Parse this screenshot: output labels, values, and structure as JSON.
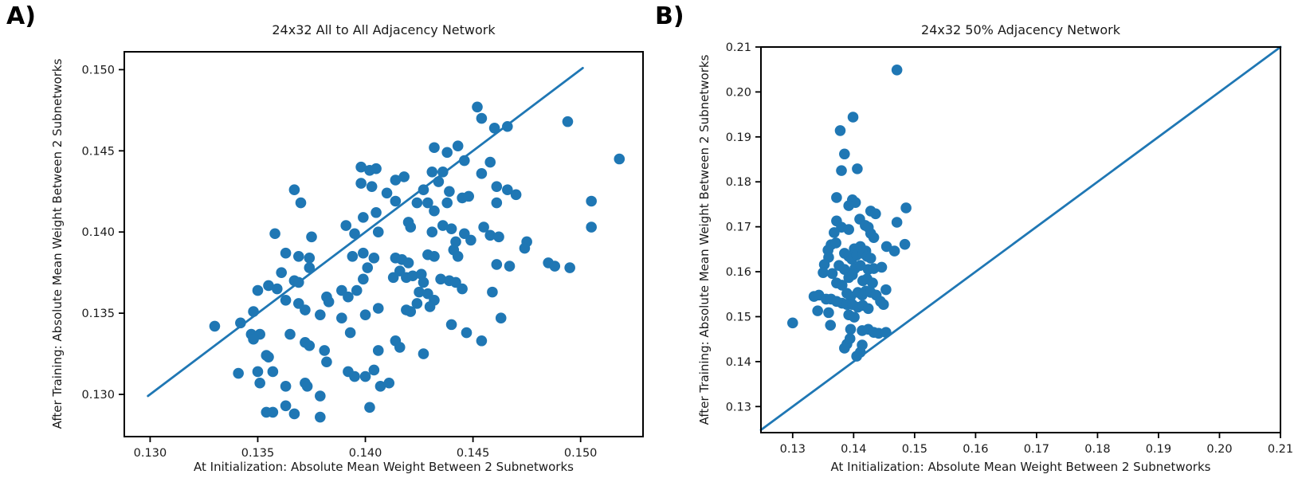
{
  "page": {
    "background": "#ffffff",
    "text_color": "#1a1a1a",
    "axis_color": "#000000"
  },
  "chart_data": [
    {
      "type": "scatter",
      "panel_label": "A)",
      "title": "24x32 All to All Adjacency Network",
      "xlabel": "At Initialization: Absolute Mean Weight Between 2 Subnetworks",
      "ylabel": "After Training: Absolute Mean Weight Between 2 Subnetworks",
      "xlim": [
        0.1288,
        0.1529
      ],
      "ylim": [
        0.1274,
        0.1511
      ],
      "xticks": [
        0.13,
        0.135,
        0.14,
        0.145,
        0.15
      ],
      "xtick_labels": [
        "0.130",
        "0.135",
        "0.140",
        "0.145",
        "0.150"
      ],
      "yticks": [
        0.13,
        0.135,
        0.14,
        0.145,
        0.15
      ],
      "ytick_labels": [
        "0.130",
        "0.135",
        "0.140",
        "0.145",
        "0.150"
      ],
      "grid": false,
      "legend": null,
      "marker_color": "#1f77b4",
      "line_color": "#1f77b4",
      "identity_line": {
        "x1": 0.1299,
        "y1": 0.1299,
        "x2": 0.1501,
        "y2": 0.1501
      },
      "points": [
        [
          0.1367,
          0.1426
        ],
        [
          0.137,
          0.1418
        ],
        [
          0.1358,
          0.1399
        ],
        [
          0.1375,
          0.1397
        ],
        [
          0.1398,
          0.144
        ],
        [
          0.1402,
          0.1438
        ],
        [
          0.1405,
          0.1439
        ],
        [
          0.1398,
          0.143
        ],
        [
          0.1403,
          0.1428
        ],
        [
          0.1391,
          0.1404
        ],
        [
          0.1395,
          0.1399
        ],
        [
          0.1399,
          0.1409
        ],
        [
          0.1405,
          0.1412
        ],
        [
          0.1406,
          0.14
        ],
        [
          0.1452,
          0.1477
        ],
        [
          0.1454,
          0.147
        ],
        [
          0.146,
          0.1464
        ],
        [
          0.1466,
          0.1465
        ],
        [
          0.1494,
          0.1468
        ],
        [
          0.1432,
          0.1452
        ],
        [
          0.1438,
          0.1449
        ],
        [
          0.1443,
          0.1453
        ],
        [
          0.1446,
          0.1444
        ],
        [
          0.1458,
          0.1443
        ],
        [
          0.1454,
          0.1436
        ],
        [
          0.1431,
          0.1437
        ],
        [
          0.1436,
          0.1437
        ],
        [
          0.1518,
          0.1445
        ],
        [
          0.1414,
          0.1432
        ],
        [
          0.1418,
          0.1434
        ],
        [
          0.1434,
          0.1431
        ],
        [
          0.1427,
          0.1426
        ],
        [
          0.1439,
          0.1425
        ],
        [
          0.141,
          0.1424
        ],
        [
          0.1414,
          0.1419
        ],
        [
          0.1424,
          0.1418
        ],
        [
          0.1429,
          0.1418
        ],
        [
          0.1432,
          0.1413
        ],
        [
          0.1438,
          0.1418
        ],
        [
          0.1445,
          0.1421
        ],
        [
          0.1448,
          0.1422
        ],
        [
          0.1461,
          0.1428
        ],
        [
          0.1466,
          0.1426
        ],
        [
          0.147,
          0.1423
        ],
        [
          0.1461,
          0.1418
        ],
        [
          0.1505,
          0.1419
        ],
        [
          0.1505,
          0.1403
        ],
        [
          0.142,
          0.1406
        ],
        [
          0.1421,
          0.1403
        ],
        [
          0.1431,
          0.14
        ],
        [
          0.1436,
          0.1404
        ],
        [
          0.144,
          0.1402
        ],
        [
          0.1446,
          0.1399
        ],
        [
          0.1455,
          0.1403
        ],
        [
          0.1458,
          0.1398
        ],
        [
          0.1462,
          0.1397
        ],
        [
          0.1475,
          0.1394
        ],
        [
          0.1449,
          0.1395
        ],
        [
          0.1442,
          0.1394
        ],
        [
          0.1363,
          0.1387
        ],
        [
          0.1369,
          0.1385
        ],
        [
          0.1374,
          0.1384
        ],
        [
          0.1361,
          0.1375
        ],
        [
          0.1367,
          0.137
        ],
        [
          0.1369,
          0.1369
        ],
        [
          0.1374,
          0.1378
        ],
        [
          0.135,
          0.1364
        ],
        [
          0.1355,
          0.1367
        ],
        [
          0.1359,
          0.1365
        ],
        [
          0.1363,
          0.1358
        ],
        [
          0.1369,
          0.1356
        ],
        [
          0.1372,
          0.1352
        ],
        [
          0.1379,
          0.1349
        ],
        [
          0.1382,
          0.136
        ],
        [
          0.1383,
          0.1357
        ],
        [
          0.1389,
          0.1364
        ],
        [
          0.1392,
          0.136
        ],
        [
          0.1396,
          0.1364
        ],
        [
          0.1399,
          0.1371
        ],
        [
          0.1401,
          0.1378
        ],
        [
          0.1404,
          0.1384
        ],
        [
          0.1394,
          0.1385
        ],
        [
          0.1399,
          0.1387
        ],
        [
          0.133,
          0.1342
        ],
        [
          0.1342,
          0.1344
        ],
        [
          0.1348,
          0.1351
        ],
        [
          0.1347,
          0.1337
        ],
        [
          0.1351,
          0.1337
        ],
        [
          0.1348,
          0.1334
        ],
        [
          0.1354,
          0.1324
        ],
        [
          0.1355,
          0.1323
        ],
        [
          0.1365,
          0.1337
        ],
        [
          0.1372,
          0.1332
        ],
        [
          0.1374,
          0.133
        ],
        [
          0.1381,
          0.1327
        ],
        [
          0.1382,
          0.132
        ],
        [
          0.1389,
          0.1347
        ],
        [
          0.1393,
          0.1338
        ],
        [
          0.14,
          0.1349
        ],
        [
          0.1406,
          0.1353
        ],
        [
          0.1392,
          0.1314
        ],
        [
          0.1395,
          0.1311
        ],
        [
          0.14,
          0.1311
        ],
        [
          0.1404,
          0.1315
        ],
        [
          0.1406,
          0.1327
        ],
        [
          0.1341,
          0.1313
        ],
        [
          0.135,
          0.1314
        ],
        [
          0.1351,
          0.1307
        ],
        [
          0.1357,
          0.1314
        ],
        [
          0.1363,
          0.1305
        ],
        [
          0.1372,
          0.1307
        ],
        [
          0.1373,
          0.1305
        ],
        [
          0.1379,
          0.1299
        ],
        [
          0.1354,
          0.1289
        ],
        [
          0.1357,
          0.1289
        ],
        [
          0.1363,
          0.1293
        ],
        [
          0.1367,
          0.1288
        ],
        [
          0.1379,
          0.1286
        ],
        [
          0.1402,
          0.1292
        ],
        [
          0.1407,
          0.1305
        ],
        [
          0.1414,
          0.1384
        ],
        [
          0.1417,
          0.1383
        ],
        [
          0.142,
          0.1381
        ],
        [
          0.1416,
          0.1376
        ],
        [
          0.1413,
          0.1372
        ],
        [
          0.1419,
          0.1372
        ],
        [
          0.1422,
          0.1373
        ],
        [
          0.1426,
          0.1374
        ],
        [
          0.1429,
          0.1386
        ],
        [
          0.1432,
          0.1385
        ],
        [
          0.1441,
          0.1389
        ],
        [
          0.1443,
          0.1385
        ],
        [
          0.1461,
          0.138
        ],
        [
          0.1467,
          0.1379
        ],
        [
          0.1485,
          0.1381
        ],
        [
          0.1488,
          0.1379
        ],
        [
          0.1495,
          0.1378
        ],
        [
          0.1474,
          0.139
        ],
        [
          0.1427,
          0.1369
        ],
        [
          0.1435,
          0.1371
        ],
        [
          0.1439,
          0.137
        ],
        [
          0.1442,
          0.1369
        ],
        [
          0.1445,
          0.1365
        ],
        [
          0.1425,
          0.1363
        ],
        [
          0.1429,
          0.1362
        ],
        [
          0.1432,
          0.1358
        ],
        [
          0.143,
          0.1354
        ],
        [
          0.1424,
          0.1356
        ],
        [
          0.1459,
          0.1363
        ],
        [
          0.1419,
          0.1352
        ],
        [
          0.1421,
          0.1351
        ],
        [
          0.144,
          0.1343
        ],
        [
          0.1447,
          0.1338
        ],
        [
          0.1454,
          0.1333
        ],
        [
          0.1463,
          0.1347
        ],
        [
          0.1414,
          0.1333
        ],
        [
          0.1416,
          0.1329
        ],
        [
          0.1427,
          0.1325
        ],
        [
          0.1411,
          0.1307
        ]
      ]
    },
    {
      "type": "scatter",
      "panel_label": "B)",
      "title": "24x32 50% Adjacency Network",
      "xlabel": "At Initialization: Absolute Mean Weight Between 2 Subnetworks",
      "ylabel": "After Training: Absolute Mean Weight Between 2 Subnetworks",
      "xlim": [
        0.1248,
        0.21
      ],
      "ylim": [
        0.1242,
        0.21
      ],
      "xticks": [
        0.13,
        0.14,
        0.15,
        0.16,
        0.17,
        0.18,
        0.19,
        0.2,
        0.21
      ],
      "xtick_labels": [
        "0.13",
        "0.14",
        "0.15",
        "0.16",
        "0.17",
        "0.18",
        "0.19",
        "0.20",
        "0.21"
      ],
      "yticks": [
        0.13,
        0.14,
        0.15,
        0.16,
        0.17,
        0.18,
        0.19,
        0.2,
        0.21
      ],
      "ytick_labels": [
        "0.13",
        "0.14",
        "0.15",
        "0.16",
        "0.17",
        "0.18",
        "0.19",
        "0.20",
        "0.21"
      ],
      "grid": false,
      "legend": null,
      "marker_color": "#1f77b4",
      "line_color": "#1f77b4",
      "identity_line": {
        "x1": 0.1248,
        "y1": 0.1248,
        "x2": 0.21,
        "y2": 0.21
      },
      "points": [
        [
          0.1471,
          0.2049
        ],
        [
          0.1399,
          0.1944
        ],
        [
          0.1378,
          0.1914
        ],
        [
          0.1385,
          0.1862
        ],
        [
          0.138,
          0.1825
        ],
        [
          0.1406,
          0.1829
        ],
        [
          0.1372,
          0.1765
        ],
        [
          0.1398,
          0.176
        ],
        [
          0.1403,
          0.1754
        ],
        [
          0.1392,
          0.1747
        ],
        [
          0.1486,
          0.1742
        ],
        [
          0.1428,
          0.1735
        ],
        [
          0.1436,
          0.1729
        ],
        [
          0.1372,
          0.1713
        ],
        [
          0.138,
          0.1699
        ],
        [
          0.141,
          0.1717
        ],
        [
          0.1419,
          0.1703
        ],
        [
          0.1424,
          0.1699
        ],
        [
          0.1471,
          0.171
        ],
        [
          0.1368,
          0.1687
        ],
        [
          0.1392,
          0.1694
        ],
        [
          0.1428,
          0.1685
        ],
        [
          0.1433,
          0.1676
        ],
        [
          0.1363,
          0.166
        ],
        [
          0.1371,
          0.1664
        ],
        [
          0.1401,
          0.1651
        ],
        [
          0.1411,
          0.1656
        ],
        [
          0.142,
          0.1646
        ],
        [
          0.1454,
          0.1656
        ],
        [
          0.1484,
          0.1661
        ],
        [
          0.1467,
          0.1646
        ],
        [
          0.1358,
          0.1648
        ],
        [
          0.1359,
          0.1632
        ],
        [
          0.1385,
          0.1641
        ],
        [
          0.1392,
          0.1634
        ],
        [
          0.1397,
          0.1628
        ],
        [
          0.1405,
          0.1637
        ],
        [
          0.1415,
          0.1641
        ],
        [
          0.1422,
          0.1634
        ],
        [
          0.1428,
          0.163
        ],
        [
          0.1352,
          0.1616
        ],
        [
          0.1376,
          0.1614
        ],
        [
          0.1385,
          0.1605
        ],
        [
          0.1402,
          0.1607
        ],
        [
          0.1411,
          0.1614
        ],
        [
          0.1424,
          0.1605
        ],
        [
          0.1433,
          0.1607
        ],
        [
          0.1446,
          0.161
        ],
        [
          0.135,
          0.1598
        ],
        [
          0.1365,
          0.1596
        ],
        [
          0.1392,
          0.1587
        ],
        [
          0.1398,
          0.1593
        ],
        [
          0.1415,
          0.158
        ],
        [
          0.1422,
          0.1584
        ],
        [
          0.1431,
          0.1575
        ],
        [
          0.1372,
          0.1575
        ],
        [
          0.1381,
          0.157
        ],
        [
          0.1389,
          0.1552
        ],
        [
          0.1395,
          0.1545
        ],
        [
          0.1407,
          0.1554
        ],
        [
          0.1414,
          0.1548
        ],
        [
          0.142,
          0.1557
        ],
        [
          0.1428,
          0.1554
        ],
        [
          0.1437,
          0.1548
        ],
        [
          0.1444,
          0.1534
        ],
        [
          0.1453,
          0.156
        ],
        [
          0.1335,
          0.1545
        ],
        [
          0.1343,
          0.1548
        ],
        [
          0.1355,
          0.1539
        ],
        [
          0.1363,
          0.1539
        ],
        [
          0.1372,
          0.1534
        ],
        [
          0.1381,
          0.153
        ],
        [
          0.1389,
          0.1527
        ],
        [
          0.1398,
          0.1527
        ],
        [
          0.1407,
          0.1521
        ],
        [
          0.1415,
          0.1525
        ],
        [
          0.1424,
          0.1518
        ],
        [
          0.1449,
          0.1527
        ],
        [
          0.1341,
          0.1513
        ],
        [
          0.1359,
          0.1509
        ],
        [
          0.1392,
          0.1504
        ],
        [
          0.1401,
          0.1499
        ],
        [
          0.13,
          0.1486
        ],
        [
          0.1362,
          0.1481
        ],
        [
          0.1395,
          0.1472
        ],
        [
          0.1414,
          0.1469
        ],
        [
          0.1424,
          0.1472
        ],
        [
          0.1433,
          0.1465
        ],
        [
          0.1441,
          0.1463
        ],
        [
          0.1453,
          0.1465
        ],
        [
          0.1389,
          0.1439
        ],
        [
          0.1394,
          0.1451
        ],
        [
          0.1385,
          0.143
        ],
        [
          0.1414,
          0.1437
        ],
        [
          0.1405,
          0.1412
        ],
        [
          0.1411,
          0.1421
        ]
      ]
    }
  ]
}
